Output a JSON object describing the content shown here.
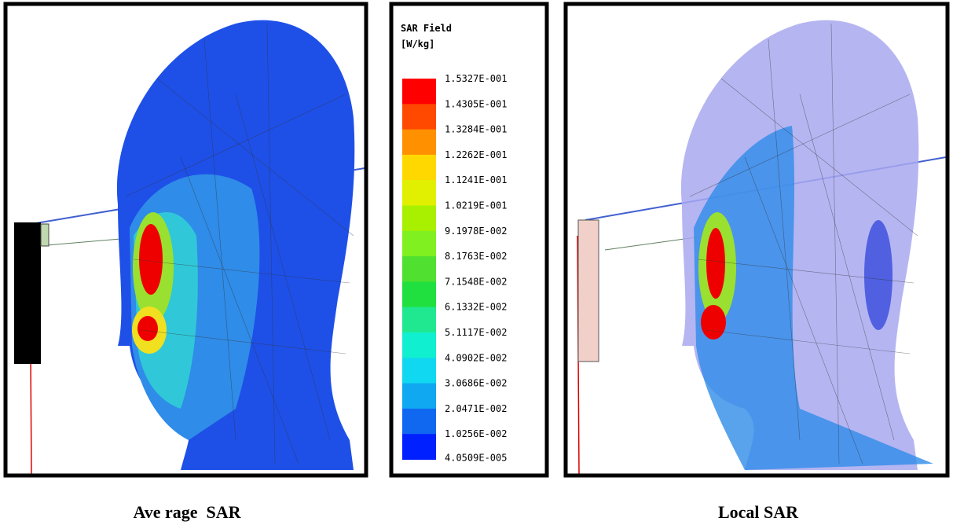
{
  "panels": [
    {
      "caption": "Ave rage  SAR"
    },
    {
      "caption": "Local SAR"
    }
  ],
  "legend": {
    "title": "SAR Field",
    "unit": "[W/kg]",
    "labels": [
      "1.5327E-001",
      "1.4305E-001",
      "1.3284E-001",
      "1.2262E-001",
      "1.1241E-001",
      "1.0219E-001",
      "9.1978E-002",
      "8.1763E-002",
      "7.1548E-002",
      "6.1332E-002",
      "5.1117E-002",
      "4.0902E-002",
      "3.0686E-002",
      "2.0471E-002",
      "1.0256E-002",
      "4.0509E-005"
    ],
    "colors": [
      "#ff0000",
      "#ff4800",
      "#ff9000",
      "#ffd800",
      "#e0f000",
      "#a8f000",
      "#80f020",
      "#50e030",
      "#20e040",
      "#20e890",
      "#10f0d0",
      "#10d8f0",
      "#10a8f0",
      "#1068f0",
      "#0020ff"
    ]
  }
}
